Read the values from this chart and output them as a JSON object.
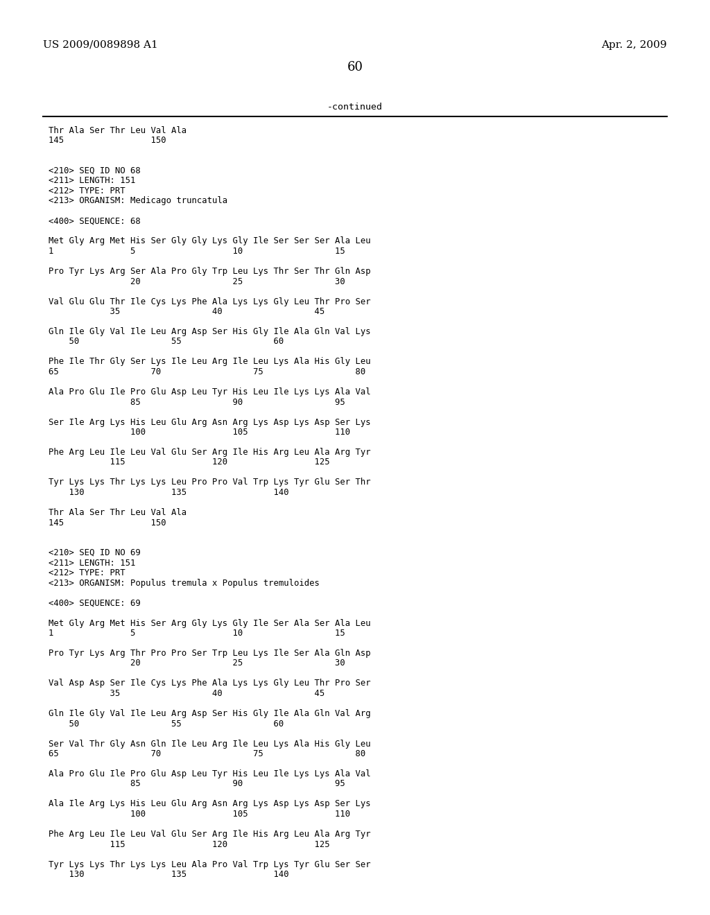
{
  "header_left": "US 2009/0089898 A1",
  "header_right": "Apr. 2, 2009",
  "page_number": "60",
  "continued_label": "-continued",
  "background_color": "#ffffff",
  "text_color": "#000000",
  "header_fontsize": 11,
  "page_num_fontsize": 13,
  "mono_font_size": 8.8,
  "lines": [
    {
      "text": "Thr Ala Ser Thr Leu Val Ala",
      "type": "seq"
    },
    {
      "text": "145                 150",
      "type": "seq"
    },
    {
      "text": "",
      "type": "blank"
    },
    {
      "text": "",
      "type": "blank"
    },
    {
      "text": "<210> SEQ ID NO 68",
      "type": "seq"
    },
    {
      "text": "<211> LENGTH: 151",
      "type": "seq"
    },
    {
      "text": "<212> TYPE: PRT",
      "type": "seq"
    },
    {
      "text": "<213> ORGANISM: Medicago truncatula",
      "type": "seq"
    },
    {
      "text": "",
      "type": "blank"
    },
    {
      "text": "<400> SEQUENCE: 68",
      "type": "seq"
    },
    {
      "text": "",
      "type": "blank"
    },
    {
      "text": "Met Gly Arg Met His Ser Gly Gly Lys Gly Ile Ser Ser Ser Ala Leu",
      "type": "seq"
    },
    {
      "text": "1               5                   10                  15",
      "type": "seq"
    },
    {
      "text": "",
      "type": "blank"
    },
    {
      "text": "Pro Tyr Lys Arg Ser Ala Pro Gly Trp Leu Lys Thr Ser Thr Gln Asp",
      "type": "seq"
    },
    {
      "text": "                20                  25                  30",
      "type": "seq"
    },
    {
      "text": "",
      "type": "blank"
    },
    {
      "text": "Val Glu Glu Thr Ile Cys Lys Phe Ala Lys Lys Gly Leu Thr Pro Ser",
      "type": "seq"
    },
    {
      "text": "            35                  40                  45",
      "type": "seq"
    },
    {
      "text": "",
      "type": "blank"
    },
    {
      "text": "Gln Ile Gly Val Ile Leu Arg Asp Ser His Gly Ile Ala Gln Val Lys",
      "type": "seq"
    },
    {
      "text": "    50                  55                  60",
      "type": "seq"
    },
    {
      "text": "",
      "type": "blank"
    },
    {
      "text": "Phe Ile Thr Gly Ser Lys Ile Leu Arg Ile Leu Lys Ala His Gly Leu",
      "type": "seq"
    },
    {
      "text": "65                  70                  75                  80",
      "type": "seq"
    },
    {
      "text": "",
      "type": "blank"
    },
    {
      "text": "Ala Pro Glu Ile Pro Glu Asp Leu Tyr His Leu Ile Lys Lys Ala Val",
      "type": "seq"
    },
    {
      "text": "                85                  90                  95",
      "type": "seq"
    },
    {
      "text": "",
      "type": "blank"
    },
    {
      "text": "Ser Ile Arg Lys His Leu Glu Arg Asn Arg Lys Asp Lys Asp Ser Lys",
      "type": "seq"
    },
    {
      "text": "                100                 105                 110",
      "type": "seq"
    },
    {
      "text": "",
      "type": "blank"
    },
    {
      "text": "Phe Arg Leu Ile Leu Val Glu Ser Arg Ile His Arg Leu Ala Arg Tyr",
      "type": "seq"
    },
    {
      "text": "            115                 120                 125",
      "type": "seq"
    },
    {
      "text": "",
      "type": "blank"
    },
    {
      "text": "Tyr Lys Lys Thr Lys Lys Leu Pro Pro Val Trp Lys Tyr Glu Ser Thr",
      "type": "seq"
    },
    {
      "text": "    130                 135                 140",
      "type": "seq"
    },
    {
      "text": "",
      "type": "blank"
    },
    {
      "text": "Thr Ala Ser Thr Leu Val Ala",
      "type": "seq"
    },
    {
      "text": "145                 150",
      "type": "seq"
    },
    {
      "text": "",
      "type": "blank"
    },
    {
      "text": "",
      "type": "blank"
    },
    {
      "text": "<210> SEQ ID NO 69",
      "type": "seq"
    },
    {
      "text": "<211> LENGTH: 151",
      "type": "seq"
    },
    {
      "text": "<212> TYPE: PRT",
      "type": "seq"
    },
    {
      "text": "<213> ORGANISM: Populus tremula x Populus tremuloides",
      "type": "seq"
    },
    {
      "text": "",
      "type": "blank"
    },
    {
      "text": "<400> SEQUENCE: 69",
      "type": "seq"
    },
    {
      "text": "",
      "type": "blank"
    },
    {
      "text": "Met Gly Arg Met His Ser Arg Gly Lys Gly Ile Ser Ala Ser Ala Leu",
      "type": "seq"
    },
    {
      "text": "1               5                   10                  15",
      "type": "seq"
    },
    {
      "text": "",
      "type": "blank"
    },
    {
      "text": "Pro Tyr Lys Arg Thr Pro Pro Ser Trp Leu Lys Ile Ser Ala Gln Asp",
      "type": "seq"
    },
    {
      "text": "                20                  25                  30",
      "type": "seq"
    },
    {
      "text": "",
      "type": "blank"
    },
    {
      "text": "Val Asp Asp Ser Ile Cys Lys Phe Ala Lys Lys Gly Leu Thr Pro Ser",
      "type": "seq"
    },
    {
      "text": "            35                  40                  45",
      "type": "seq"
    },
    {
      "text": "",
      "type": "blank"
    },
    {
      "text": "Gln Ile Gly Val Ile Leu Arg Asp Ser His Gly Ile Ala Gln Val Arg",
      "type": "seq"
    },
    {
      "text": "    50                  55                  60",
      "type": "seq"
    },
    {
      "text": "",
      "type": "blank"
    },
    {
      "text": "Ser Val Thr Gly Asn Gln Ile Leu Arg Ile Leu Lys Ala His Gly Leu",
      "type": "seq"
    },
    {
      "text": "65                  70                  75                  80",
      "type": "seq"
    },
    {
      "text": "",
      "type": "blank"
    },
    {
      "text": "Ala Pro Glu Ile Pro Glu Asp Leu Tyr His Leu Ile Lys Lys Ala Val",
      "type": "seq"
    },
    {
      "text": "                85                  90                  95",
      "type": "seq"
    },
    {
      "text": "",
      "type": "blank"
    },
    {
      "text": "Ala Ile Arg Lys His Leu Glu Arg Asn Arg Lys Asp Lys Asp Ser Lys",
      "type": "seq"
    },
    {
      "text": "                100                 105                 110",
      "type": "seq"
    },
    {
      "text": "",
      "type": "blank"
    },
    {
      "text": "Phe Arg Leu Ile Leu Val Glu Ser Arg Ile His Arg Leu Ala Arg Tyr",
      "type": "seq"
    },
    {
      "text": "            115                 120                 125",
      "type": "seq"
    },
    {
      "text": "",
      "type": "blank"
    },
    {
      "text": "Tyr Lys Lys Thr Lys Lys Leu Ala Pro Val Trp Lys Tyr Glu Ser Ser",
      "type": "seq"
    },
    {
      "text": "    130                 135                 140",
      "type": "seq"
    }
  ]
}
